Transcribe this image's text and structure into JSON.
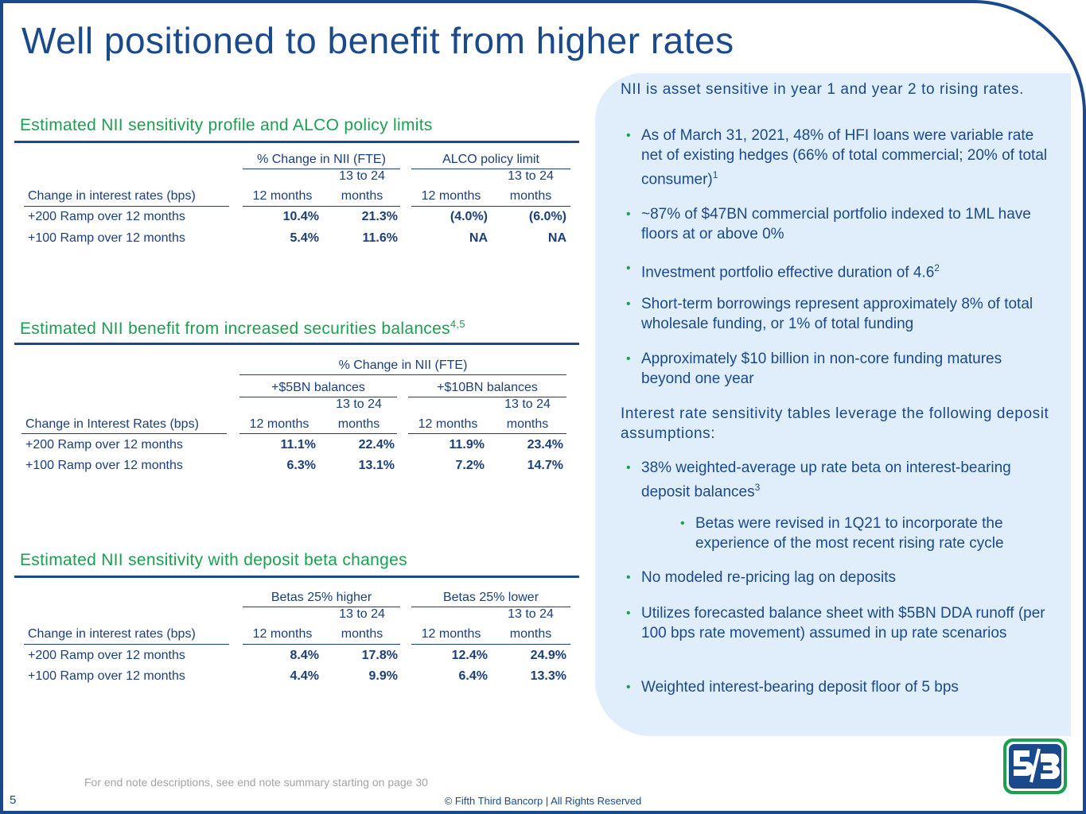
{
  "title": "Well positioned to benefit from higher rates",
  "page_number": "5",
  "footnote": "For end note descriptions, see end note summary starting on page 30",
  "copyright": "© Fifth Third Bancorp | All Rights Reserved",
  "section1": {
    "heading": "Estimated NII sensitivity profile and ALCO policy limits",
    "group1": "% Change in NII (FTE)",
    "group2": "ALCO policy limit",
    "col_a": "12 months",
    "col_b_top": "13 to 24",
    "col_b_bot": "months",
    "row_header": "Change in interest rates (bps)",
    "rows": [
      {
        "label": "+200 Ramp over 12 months",
        "v1": "10.4%",
        "v2": "21.3%",
        "v3": "(4.0%)",
        "v4": "(6.0%)"
      },
      {
        "label": "+100 Ramp over 12 months",
        "v1": "5.4%",
        "v2": "11.6%",
        "v3": "NA",
        "v4": "NA"
      }
    ]
  },
  "section2": {
    "heading": "Estimated NII benefit from increased securities balances",
    "heading_sup": "4,5",
    "super_group": "% Change in NII (FTE)",
    "group1": "+$5BN balances",
    "group2": "+$10BN balances",
    "col_a": "12 months",
    "col_b_top": "13 to 24",
    "col_b_bot": "months",
    "row_header": "Change in Interest Rates (bps)",
    "rows": [
      {
        "label": "+200 Ramp over 12 months",
        "v1": "11.1%",
        "v2": "22.4%",
        "v3": "11.9%",
        "v4": "23.4%"
      },
      {
        "label": "+100 Ramp over 12 months",
        "v1": "6.3%",
        "v2": "13.1%",
        "v3": "7.2%",
        "v4": "14.7%"
      }
    ]
  },
  "section3": {
    "heading": "Estimated NII sensitivity with deposit beta changes",
    "group1": "Betas 25% higher",
    "group2": "Betas 25% lower",
    "col_a": "12 months",
    "col_b_top": "13 to 24",
    "col_b_bot": "months",
    "row_header": "Change in interest rates (bps)",
    "rows": [
      {
        "label": "+200 Ramp over 12 months",
        "v1": "8.4%",
        "v2": "17.8%",
        "v3": "12.4%",
        "v4": "24.9%"
      },
      {
        "label": "+100 Ramp over 12 months",
        "v1": "4.4%",
        "v2": "9.9%",
        "v3": "6.4%",
        "v4": "13.3%"
      }
    ]
  },
  "panel": {
    "heading1": "NII is asset sensitive in year 1 and year 2 to rising rates.",
    "bullet1": "As of March 31, 2021, 48% of HFI loans were variable rate net of existing hedges (66% of total commercial; 20% of total consumer)",
    "bullet1_sup": "1",
    "bullet2": "~87% of $47BN commercial portfolio indexed to 1ML have floors at or above 0%",
    "bullet3": "Investment portfolio effective duration of 4.6",
    "bullet3_sup": "2",
    "bullet4": "Short-term borrowings represent approximately 8% of total wholesale funding, or 1% of total funding",
    "bullet5": "Approximately $10 billion in non-core funding matures beyond one year",
    "heading2": "Interest rate sensitivity tables leverage the following deposit assumptions:",
    "bullet6": "38% weighted-average up rate beta on interest-bearing deposit balances",
    "bullet6_sup": "3",
    "sub_bullet": "Betas were revised in 1Q21 to incorporate the experience of the most recent rising rate cycle",
    "bullet7": "No modeled re-pricing lag on deposits",
    "bullet8": "Utilizes forecasted balance sheet with $5BN DDA runoff (per 100 bps rate movement) assumed in up rate scenarios",
    "bullet9": "Weighted interest-bearing deposit floor of 5 bps"
  },
  "colors": {
    "navy": "#1a4a8c",
    "green": "#1aa050",
    "panel": "#dfeefa"
  }
}
